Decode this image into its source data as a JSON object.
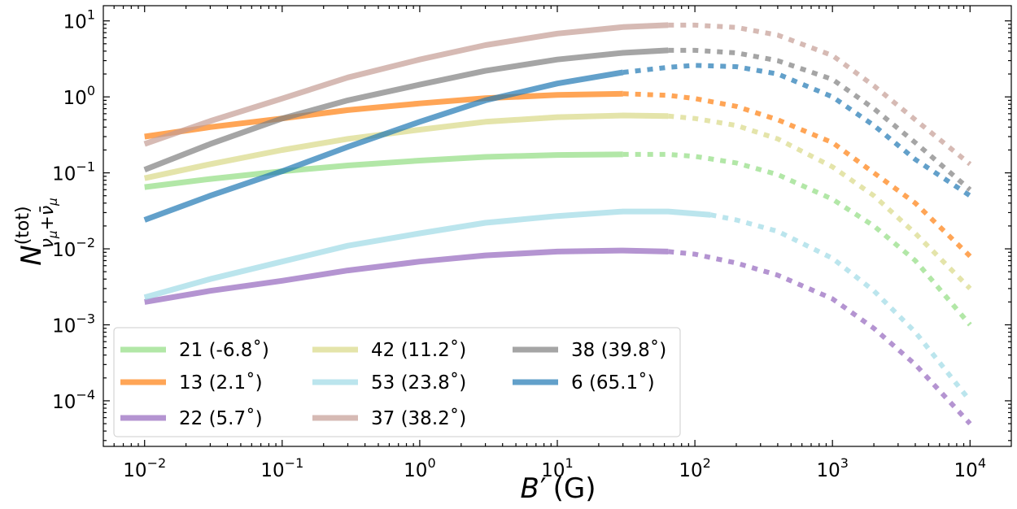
{
  "chart_data": {
    "type": "line",
    "xscale": "log",
    "yscale": "log",
    "xlim_exp": [
      -2.3,
      4.3
    ],
    "ylim_exp": [
      -4.6,
      1.2
    ],
    "xticks_exp": [
      -2,
      -1,
      0,
      1,
      2,
      3,
      4
    ],
    "yticks_exp": [
      -4,
      -3,
      -2,
      -1,
      0,
      1
    ],
    "tick_base": "10",
    "xlabel": {
      "main": "B",
      "prime": "′",
      "unit": "(G)"
    },
    "ylabel": {
      "main": "N",
      "sup": "(tot)",
      "sub": "ν",
      "sub_mu": "μ",
      "plus": "+",
      "bar": "ν̄",
      "bar_mu": "μ"
    },
    "legend": {
      "location": "lower left",
      "ncol": 3
    },
    "series": [
      {
        "name": "21 (-6.8˚)",
        "color": "#98df8a",
        "alpha": 0.75,
        "solid_x": [
          0.01,
          0.03,
          0.1,
          0.3,
          1,
          3,
          10,
          30
        ],
        "solid_y": [
          0.065,
          0.083,
          0.105,
          0.125,
          0.145,
          0.162,
          0.172,
          0.175
        ],
        "dotted_x": [
          30,
          64,
          100,
          200,
          400,
          1000,
          2000,
          4000,
          10000
        ],
        "dotted_y": [
          0.175,
          0.175,
          0.165,
          0.135,
          0.095,
          0.045,
          0.02,
          0.007,
          0.001
        ]
      },
      {
        "name": "13 (2.1˚)",
        "color": "#ff7f0e",
        "alpha": 0.7,
        "solid_x": [
          0.01,
          0.03,
          0.1,
          0.3,
          1,
          3,
          10,
          30
        ],
        "solid_y": [
          0.3,
          0.4,
          0.52,
          0.67,
          0.82,
          0.96,
          1.06,
          1.1
        ],
        "dotted_x": [
          30,
          64,
          100,
          200,
          400,
          1000,
          2000,
          4000,
          10000
        ],
        "dotted_y": [
          1.1,
          1.05,
          0.95,
          0.75,
          0.5,
          0.25,
          0.1,
          0.04,
          0.008
        ]
      },
      {
        "name": "22 (5.7˚)",
        "color": "#9467bd",
        "alpha": 0.7,
        "solid_x": [
          0.01,
          0.03,
          0.1,
          0.3,
          1,
          3,
          10,
          30,
          64
        ],
        "solid_y": [
          0.002,
          0.0028,
          0.0038,
          0.0052,
          0.0068,
          0.0082,
          0.0092,
          0.0095,
          0.0092
        ],
        "dotted_x": [
          64,
          100,
          200,
          400,
          1000,
          2000,
          4000,
          10000
        ],
        "dotted_y": [
          0.0092,
          0.0085,
          0.0065,
          0.0045,
          0.0022,
          0.0009,
          0.0003,
          5e-05
        ]
      },
      {
        "name": "42 (11.2˚)",
        "color": "#dbdb8d",
        "alpha": 0.75,
        "solid_x": [
          0.01,
          0.03,
          0.1,
          0.3,
          1,
          3,
          10,
          30,
          64
        ],
        "solid_y": [
          0.085,
          0.13,
          0.2,
          0.28,
          0.37,
          0.47,
          0.54,
          0.57,
          0.56
        ],
        "dotted_x": [
          64,
          100,
          200,
          400,
          1000,
          2000,
          4000,
          10000
        ],
        "dotted_y": [
          0.56,
          0.52,
          0.42,
          0.28,
          0.12,
          0.05,
          0.016,
          0.003
        ]
      },
      {
        "name": "53 (23.8˚)",
        "color": "#9edae5",
        "alpha": 0.7,
        "solid_x": [
          0.01,
          0.03,
          0.1,
          0.3,
          1,
          3,
          10,
          30,
          64,
          130
        ],
        "solid_y": [
          0.0023,
          0.004,
          0.0068,
          0.011,
          0.016,
          0.022,
          0.027,
          0.031,
          0.031,
          0.028
        ],
        "dotted_x": [
          130,
          200,
          400,
          1000,
          2000,
          4000,
          10000
        ],
        "dotted_y": [
          0.028,
          0.024,
          0.017,
          0.0075,
          0.0028,
          0.0008,
          0.0001
        ]
      },
      {
        "name": "37 (38.2˚)",
        "color": "#c49c94",
        "alpha": 0.7,
        "solid_x": [
          0.01,
          0.03,
          0.1,
          0.3,
          1,
          3,
          10,
          30,
          64
        ],
        "solid_y": [
          0.24,
          0.48,
          0.95,
          1.8,
          3.1,
          4.8,
          6.8,
          8.3,
          8.8
        ],
        "dotted_x": [
          64,
          100,
          200,
          400,
          1000,
          2000,
          4000,
          10000
        ],
        "dotted_y": [
          8.8,
          8.8,
          8.2,
          6.5,
          3.5,
          1.4,
          0.5,
          0.13
        ]
      },
      {
        "name": "38 (39.8˚)",
        "color": "#7f7f7f",
        "alpha": 0.7,
        "solid_x": [
          0.01,
          0.03,
          0.1,
          0.3,
          1,
          3,
          10,
          30,
          64
        ],
        "solid_y": [
          0.11,
          0.24,
          0.52,
          0.9,
          1.45,
          2.2,
          3.1,
          3.8,
          4.1
        ],
        "dotted_x": [
          64,
          100,
          200,
          400,
          1000,
          2000,
          4000,
          10000
        ],
        "dotted_y": [
          4.1,
          4.1,
          3.8,
          3.0,
          1.7,
          0.7,
          0.25,
          0.06
        ]
      },
      {
        "name": "6 (65.1˚)",
        "color": "#1f77b4",
        "alpha": 0.7,
        "solid_x": [
          0.01,
          0.03,
          0.1,
          0.3,
          1,
          3,
          10,
          30
        ],
        "solid_y": [
          0.024,
          0.05,
          0.105,
          0.22,
          0.47,
          0.9,
          1.5,
          2.1
        ],
        "dotted_x": [
          30,
          64,
          100,
          200,
          400,
          1000,
          2000,
          4000,
          10000
        ],
        "dotted_y": [
          2.1,
          2.45,
          2.6,
          2.5,
          2.0,
          1.0,
          0.42,
          0.15,
          0.05
        ]
      }
    ]
  }
}
